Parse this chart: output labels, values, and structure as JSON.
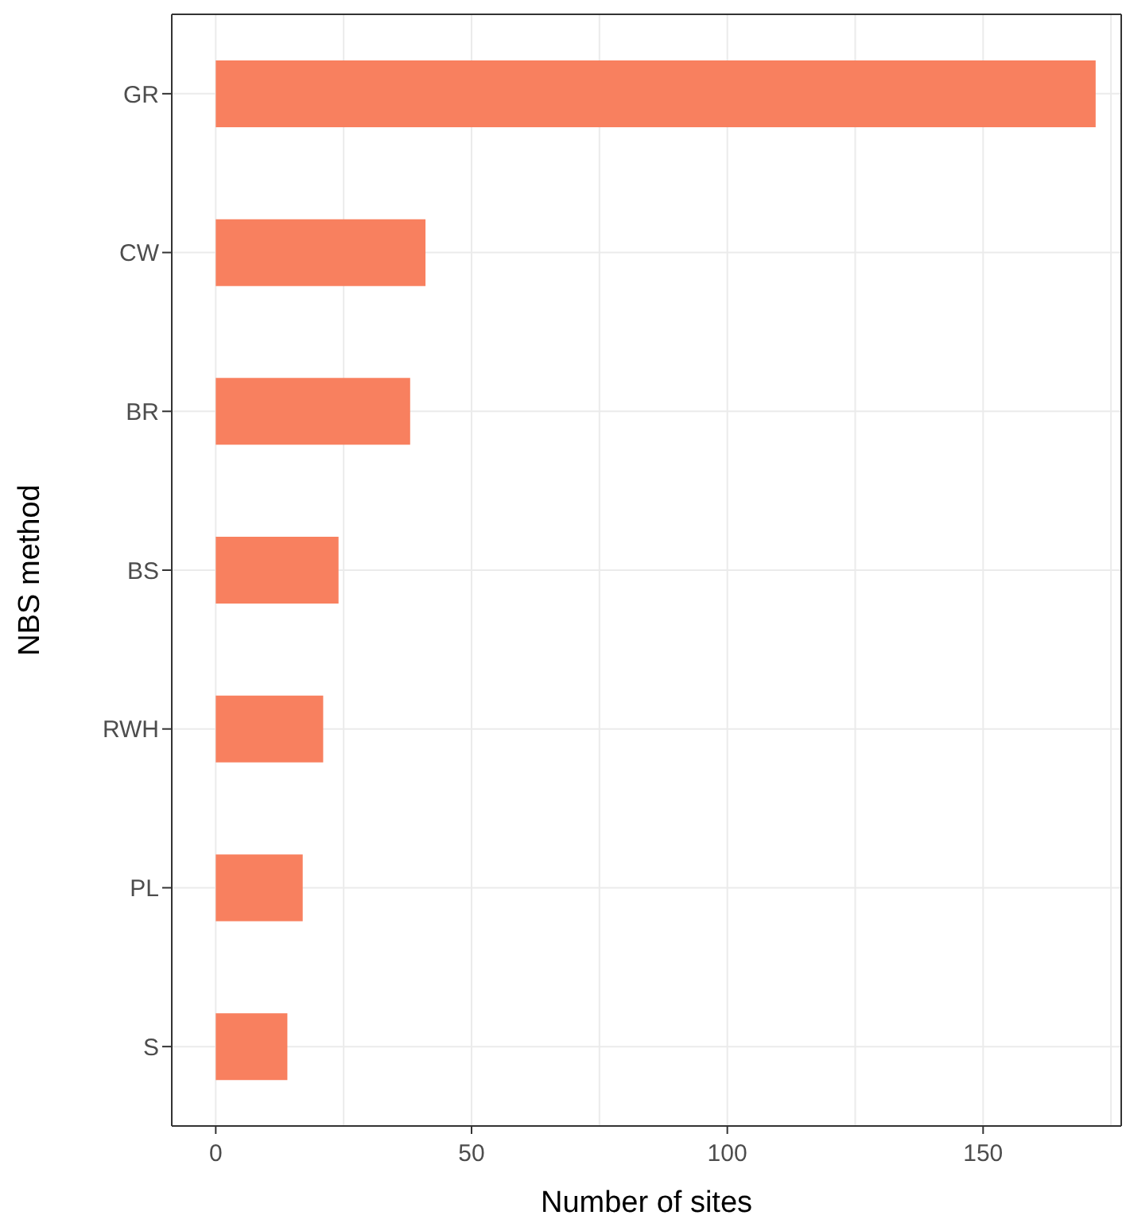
{
  "chart_data": {
    "type": "bar",
    "orientation": "horizontal",
    "xlabel": "Number of sites",
    "ylabel": "NBS method",
    "categories": [
      "GR",
      "CW",
      "BR",
      "BS",
      "RWH",
      "PL",
      "S"
    ],
    "values": [
      172,
      41,
      38,
      24,
      21,
      17,
      14
    ],
    "color": "#f8805f",
    "xlim": [
      -8.6,
      177
    ],
    "xticks": [
      0,
      {
        "value": 25,
        "label": null
      },
      50,
      {
        "value": 75,
        "label": null
      },
      100,
      {
        "value": 125,
        "label": null
      },
      150,
      {
        "value": 175,
        "label": null
      }
    ],
    "grid": true,
    "legend": false
  }
}
